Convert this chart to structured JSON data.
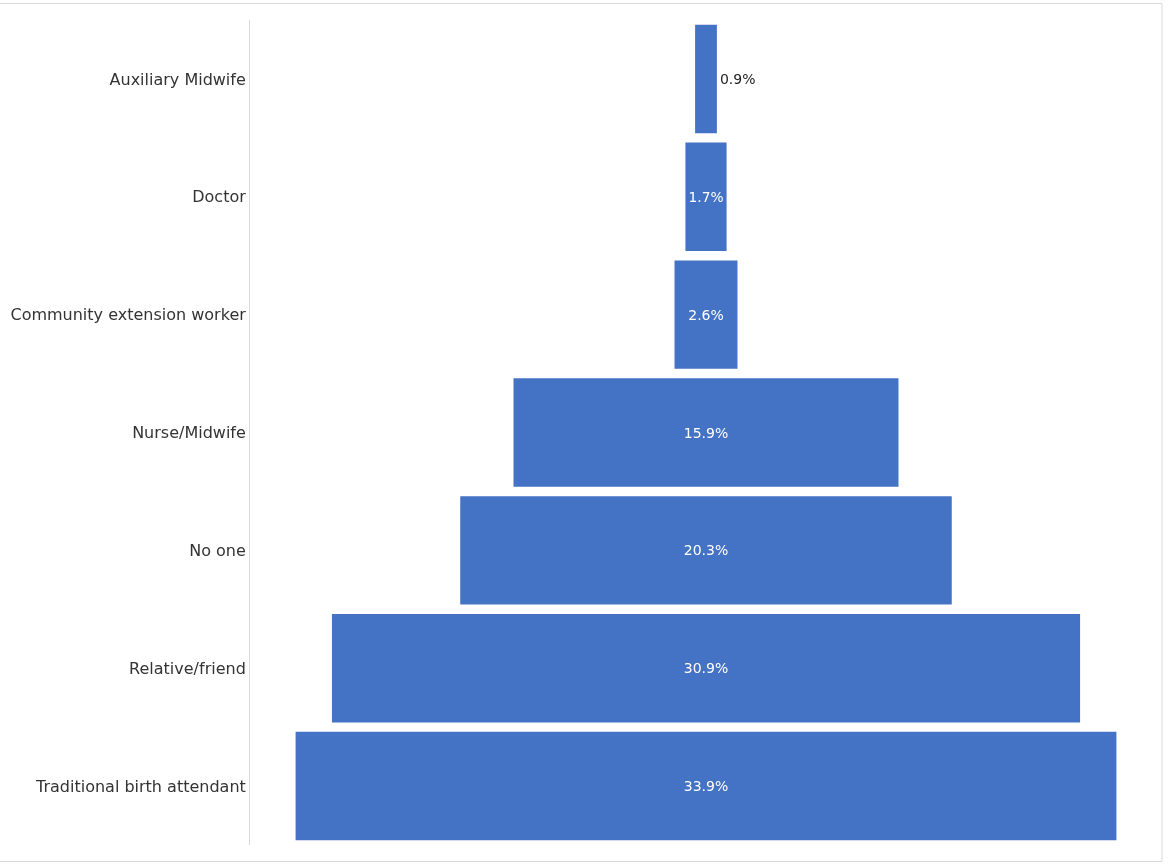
{
  "chart_data": {
    "type": "other",
    "categories": [
      "Auxiliary Midwife",
      "Doctor",
      "Community extension worker",
      "Nurse/Midwife",
      "No one",
      "Relative/friend",
      "Traditional birth attendant"
    ],
    "values": [
      0.9,
      1.7,
      2.6,
      15.9,
      20.3,
      30.9,
      33.9
    ],
    "value_labels": [
      "0.9%",
      "1.7%",
      "2.6%",
      "15.9%",
      "20.3%",
      "30.9%",
      "33.9%"
    ],
    "color": "#4472c4"
  }
}
